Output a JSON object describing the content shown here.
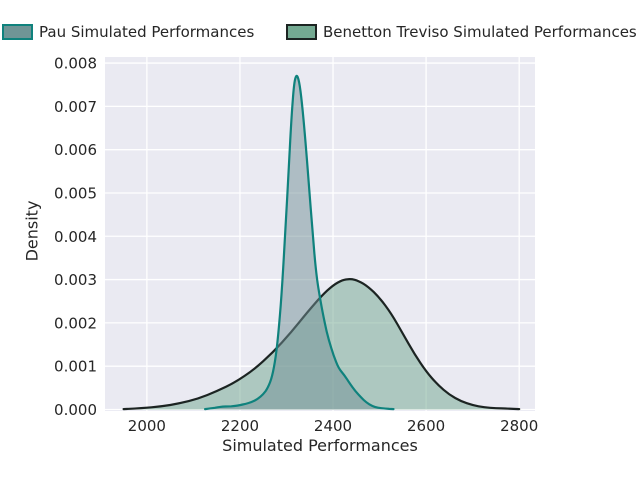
{
  "figure": {
    "background": "#ffffff",
    "axes_background": "#eaeaf2",
    "grid_color": "#ffffff",
    "text_color": "#262626"
  },
  "legend": {
    "items": [
      {
        "label": "Pau Simulated Performances",
        "swatch_fill": "#6f9596",
        "swatch_edge": "#0f827d"
      },
      {
        "label": "Benetton Treviso Simulated Performances",
        "swatch_fill": "#74aa92",
        "swatch_edge": "#1c2422"
      }
    ]
  },
  "chart_data": {
    "type": "area",
    "subtype": "kde-density",
    "title": "",
    "xlabel": "Simulated Performances",
    "ylabel": "Density",
    "xlim": [
      1910,
      2834
    ],
    "ylim": [
      0,
      0.00814
    ],
    "xticks": [
      2000,
      2200,
      2400,
      2600,
      2800
    ],
    "yticks": [
      0,
      0.001,
      0.002,
      0.003,
      0.004,
      0.005,
      0.006,
      0.007,
      0.008
    ],
    "ytick_decimals": 3,
    "grid": true,
    "legend_position": "top",
    "series": [
      {
        "name": "Benetton Treviso Simulated Performances",
        "line_color": "#1c2422",
        "fill_color": "#6fa58d",
        "fill_alpha": 0.5,
        "peak_x": 2430,
        "peak_density": 0.00302,
        "points": [
          [
            1950,
            1e-05
          ],
          [
            1990,
            3e-05
          ],
          [
            2030,
            7e-05
          ],
          [
            2070,
            0.00014
          ],
          [
            2110,
            0.00025
          ],
          [
            2150,
            0.00042
          ],
          [
            2190,
            0.00063
          ],
          [
            2230,
            0.00092
          ],
          [
            2270,
            0.00131
          ],
          [
            2310,
            0.00178
          ],
          [
            2345,
            0.00225
          ],
          [
            2375,
            0.00262
          ],
          [
            2400,
            0.00287
          ],
          [
            2420,
            0.00299
          ],
          [
            2438,
            0.00302
          ],
          [
            2455,
            0.00297
          ],
          [
            2475,
            0.00284
          ],
          [
            2500,
            0.00258
          ],
          [
            2525,
            0.00222
          ],
          [
            2550,
            0.00175
          ],
          [
            2575,
            0.00128
          ],
          [
            2600,
            0.00088
          ],
          [
            2625,
            0.00057
          ],
          [
            2650,
            0.00034
          ],
          [
            2675,
            0.00019
          ],
          [
            2700,
            0.0001
          ],
          [
            2725,
            5e-05
          ],
          [
            2750,
            3e-05
          ],
          [
            2775,
            2e-05
          ],
          [
            2800,
            1e-05
          ]
        ]
      },
      {
        "name": "Pau Simulated Performances",
        "line_color": "#0f827d",
        "fill_color": "#718f96",
        "fill_alpha": 0.5,
        "peak_x": 2321,
        "peak_density": 0.00775,
        "points": [
          [
            2125,
            1e-05
          ],
          [
            2140,
            3e-05
          ],
          [
            2152,
            5e-05
          ],
          [
            2163,
            7e-05
          ],
          [
            2175,
            7e-05
          ],
          [
            2188,
            8e-05
          ],
          [
            2200,
            0.0001
          ],
          [
            2212,
            0.00013
          ],
          [
            2225,
            0.00017
          ],
          [
            2238,
            0.00024
          ],
          [
            2250,
            0.00035
          ],
          [
            2260,
            0.0005
          ],
          [
            2269,
            0.00075
          ],
          [
            2277,
            0.0012
          ],
          [
            2284,
            0.0019
          ],
          [
            2291,
            0.0029
          ],
          [
            2298,
            0.0042
          ],
          [
            2305,
            0.0056
          ],
          [
            2311,
            0.0068
          ],
          [
            2316,
            0.0075
          ],
          [
            2321,
            0.00775
          ],
          [
            2327,
            0.0076
          ],
          [
            2333,
            0.0071
          ],
          [
            2340,
            0.0063
          ],
          [
            2348,
            0.0052
          ],
          [
            2356,
            0.0041
          ],
          [
            2364,
            0.0031
          ],
          [
            2373,
            0.0025
          ],
          [
            2382,
            0.002
          ],
          [
            2391,
            0.0016
          ],
          [
            2401,
            0.00125
          ],
          [
            2412,
            0.00095
          ],
          [
            2424,
            0.0008
          ],
          [
            2436,
            0.0006
          ],
          [
            2448,
            0.00042
          ],
          [
            2460,
            0.00028
          ],
          [
            2472,
            0.00016
          ],
          [
            2484,
            8e-05
          ],
          [
            2496,
            4e-05
          ],
          [
            2512,
            2e-05
          ],
          [
            2530,
            1e-05
          ]
        ]
      }
    ]
  }
}
